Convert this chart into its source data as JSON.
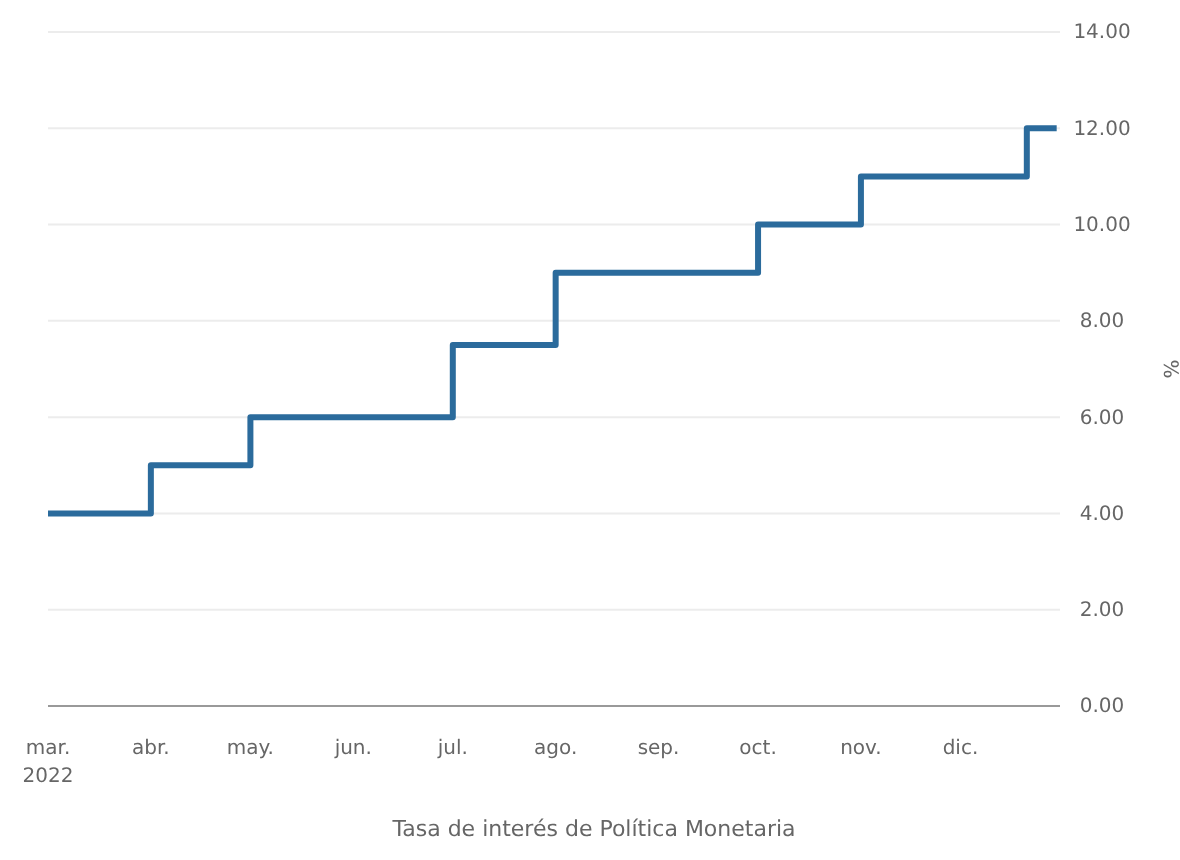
{
  "chart_data": {
    "type": "step",
    "xlabel": "Tasa de interés de Política Monetaria",
    "ylabel": "%",
    "x": [
      "2022-03-01",
      "2022-04-01",
      "2022-05-01",
      "2022-07-01",
      "2022-08-01",
      "2022-10-01",
      "2022-11-01",
      "2022-12-21",
      "2022-12-30"
    ],
    "series": [
      {
        "color": "#2b6b9c",
        "values": [
          4,
          5,
          6,
          7.5,
          9,
          10,
          11,
          12,
          12
        ]
      }
    ],
    "xlim": [
      "2022-03-01",
      "2022-12-31"
    ],
    "xticks": [
      {
        "value": "2022-03-01",
        "label": "mar.\n2022"
      },
      {
        "value": "2022-04-01",
        "label": "abr."
      },
      {
        "value": "2022-05-01",
        "label": "may."
      },
      {
        "value": "2022-06-01",
        "label": "jun."
      },
      {
        "value": "2022-07-01",
        "label": "jul."
      },
      {
        "value": "2022-08-01",
        "label": "ago."
      },
      {
        "value": "2022-09-01",
        "label": "sep."
      },
      {
        "value": "2022-10-01",
        "label": "oct."
      },
      {
        "value": "2022-11-01",
        "label": "nov."
      },
      {
        "value": "2022-12-01",
        "label": "dic."
      }
    ],
    "ylim": [
      0,
      14
    ],
    "yticks": [
      {
        "value": 0,
        "label": "0.00"
      },
      {
        "value": 2,
        "label": "2.00"
      },
      {
        "value": 4,
        "label": "4.00"
      },
      {
        "value": 6,
        "label": "6.00"
      },
      {
        "value": 8,
        "label": "8.00"
      },
      {
        "value": 10,
        "label": "10.00"
      },
      {
        "value": 12,
        "label": "12.00"
      },
      {
        "value": 14,
        "label": "14.00"
      }
    ],
    "grid": "y",
    "legend": false
  }
}
